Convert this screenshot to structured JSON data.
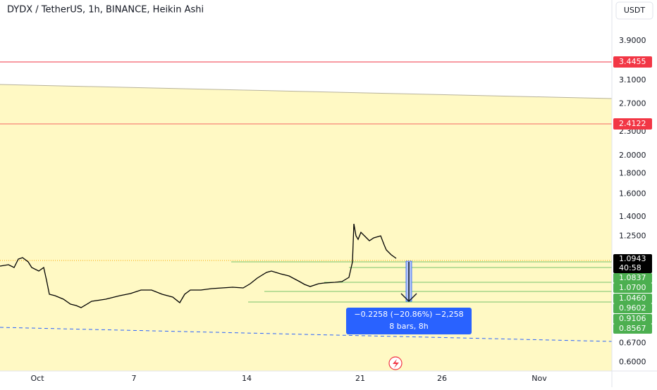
{
  "header": {
    "title": "DYDX / TetherUS, 1h, BINANCE, Heikin Ashi",
    "currency_button": "USDT"
  },
  "price_axis": [
    "3.9000",
    "3.1000",
    "2.7000",
    "2.3000",
    "2.0000",
    "1.8000",
    "1.6000",
    "1.4000",
    "1.2500",
    "0.6700",
    "0.6000"
  ],
  "price_labels": {
    "red": [
      "3.4455",
      "2.4122"
    ],
    "last": "1.0943",
    "countdown": "40:58",
    "green": [
      "1.0837",
      "1.0700",
      "1.0460",
      "0.9602",
      "0.9106",
      "0.8567"
    ]
  },
  "time_axis": [
    "Oct",
    "7",
    "14",
    "21",
    "26",
    "Nov"
  ],
  "measure": {
    "line1": "−0.2258 (−20.86%) −2,258",
    "line2": "8 bars, 8h"
  }
}
